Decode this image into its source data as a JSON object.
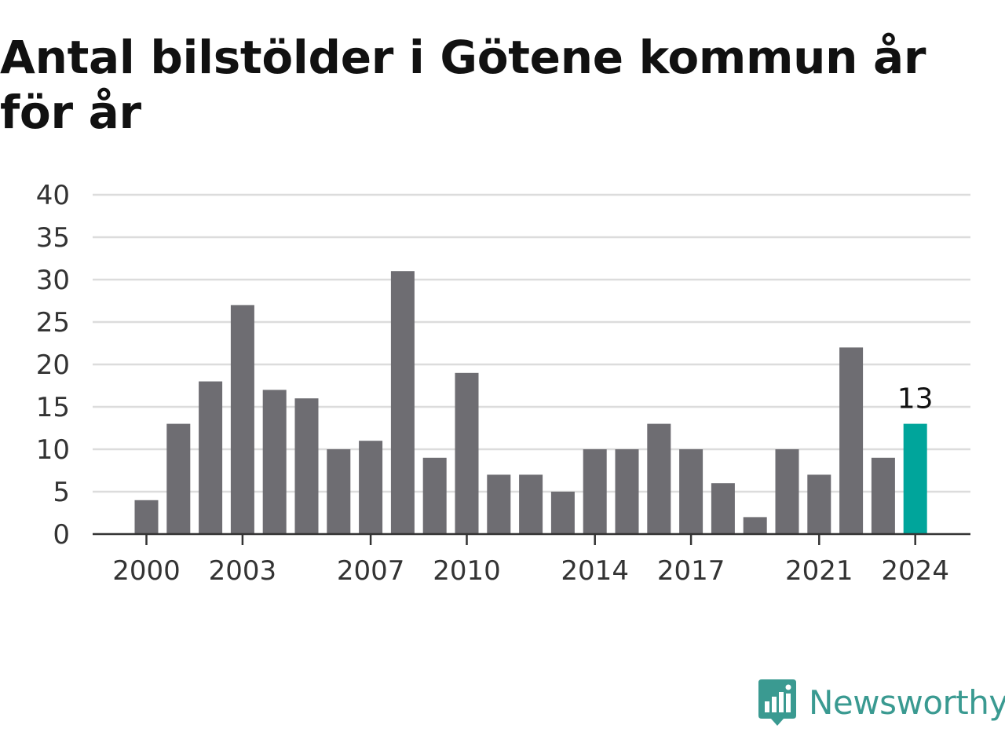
{
  "title": "Antal bilstölder i Götene kommun år för år",
  "brand": {
    "name": "Newsworthy",
    "icon": "newsworthy-logo-icon",
    "color": "#3a9a91"
  },
  "chart_data": {
    "type": "bar",
    "categories": [
      "2000",
      "2001",
      "2002",
      "2003",
      "2004",
      "2005",
      "2006",
      "2007",
      "2008",
      "2009",
      "2010",
      "2011",
      "2012",
      "2013",
      "2014",
      "2015",
      "2016",
      "2017",
      "2018",
      "2019",
      "2020",
      "2021",
      "2022",
      "2023",
      "2024"
    ],
    "values": [
      4,
      13,
      18,
      27,
      17,
      16,
      10,
      11,
      31,
      9,
      19,
      7,
      7,
      5,
      10,
      10,
      13,
      10,
      6,
      2,
      10,
      7,
      22,
      9,
      13
    ],
    "x_tick_labels": [
      "2000",
      "2003",
      "2007",
      "2010",
      "2014",
      "2017",
      "2021",
      "2024"
    ],
    "ylim": [
      0,
      40
    ],
    "yticks": [
      0,
      5,
      10,
      15,
      20,
      25,
      30,
      35,
      40
    ],
    "grid": true,
    "bar_color": "#6e6d72",
    "highlight_color": "#00a59b",
    "highlight_category": "2024",
    "data_labels": [
      {
        "category": "2024",
        "text": "13"
      }
    ]
  }
}
